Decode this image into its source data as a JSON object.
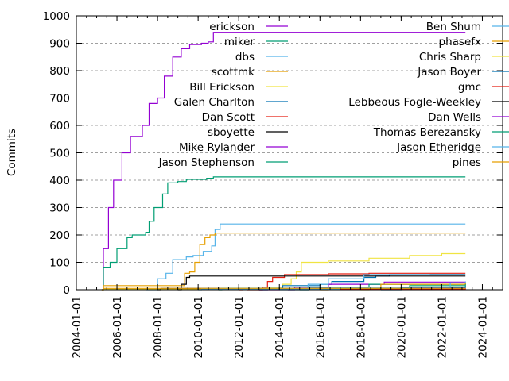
{
  "chart_data": {
    "type": "line",
    "title": "",
    "xlabel": "",
    "ylabel": "Commits",
    "xlim": [
      "2004-01-01",
      "2025-01-01"
    ],
    "ylim": [
      0,
      1000
    ],
    "x_ticks": [
      "2004-01-01",
      "2006-01-01",
      "2008-01-01",
      "2010-01-01",
      "2012-01-01",
      "2014-01-01",
      "2016-01-01",
      "2018-01-01",
      "2020-01-01",
      "2022-01-01",
      "2024-01-01"
    ],
    "y_ticks": [
      "0",
      "100",
      "200",
      "300",
      "400",
      "500",
      "600",
      "700",
      "800",
      "900",
      "1000"
    ],
    "grid": "horizontal dashed",
    "legend_placement": "top-right, two columns",
    "series": [
      {
        "name": "erickson",
        "color": "#9400d3",
        "points": [
          [
            "2005-04",
            0
          ],
          [
            "2005-05",
            150
          ],
          [
            "2005-08",
            300
          ],
          [
            "2005-11",
            400
          ],
          [
            "2006-04",
            500
          ],
          [
            "2006-09",
            560
          ],
          [
            "2007-04",
            600
          ],
          [
            "2007-08",
            680
          ],
          [
            "2008-01",
            700
          ],
          [
            "2008-05",
            780
          ],
          [
            "2008-10",
            850
          ],
          [
            "2009-03",
            880
          ],
          [
            "2009-08",
            895
          ],
          [
            "2010-03",
            900
          ],
          [
            "2010-07",
            905
          ],
          [
            "2010-10",
            940
          ],
          [
            "2023-03",
            940
          ]
        ]
      },
      {
        "name": "miker",
        "color": "#009e73",
        "points": [
          [
            "2005-04",
            0
          ],
          [
            "2005-05",
            80
          ],
          [
            "2005-09",
            100
          ],
          [
            "2006-01",
            150
          ],
          [
            "2006-07",
            190
          ],
          [
            "2006-10",
            200
          ],
          [
            "2007-06",
            210
          ],
          [
            "2007-08",
            250
          ],
          [
            "2007-11",
            300
          ],
          [
            "2008-04",
            350
          ],
          [
            "2008-07",
            390
          ],
          [
            "2009-01",
            395
          ],
          [
            "2009-06",
            403
          ],
          [
            "2010-06",
            407
          ],
          [
            "2010-10",
            412
          ],
          [
            "2023-03",
            412
          ]
        ]
      },
      {
        "name": "dbs",
        "color": "#56b4e9",
        "points": [
          [
            "2007-06",
            0
          ],
          [
            "2008-01",
            40
          ],
          [
            "2008-06",
            60
          ],
          [
            "2008-10",
            110
          ],
          [
            "2009-06",
            120
          ],
          [
            "2009-10",
            125
          ],
          [
            "2010-04",
            140
          ],
          [
            "2010-09",
            160
          ],
          [
            "2010-11",
            220
          ],
          [
            "2011-02",
            240
          ],
          [
            "2023-03",
            240
          ]
        ]
      },
      {
        "name": "scottmk",
        "color": "#e69f00",
        "points": [
          [
            "2005-04",
            0
          ],
          [
            "2005-05",
            15
          ],
          [
            "2009-04",
            15
          ],
          [
            "2009-05",
            60
          ],
          [
            "2009-08",
            65
          ],
          [
            "2009-11",
            100
          ],
          [
            "2010-02",
            165
          ],
          [
            "2010-05",
            190
          ],
          [
            "2010-08",
            200
          ],
          [
            "2010-11",
            207
          ],
          [
            "2023-03",
            207
          ]
        ]
      },
      {
        "name": "Bill Erickson",
        "color": "#f0e442",
        "points": [
          [
            "2005-04",
            0
          ],
          [
            "2005-05",
            2
          ],
          [
            "2013-06",
            10
          ],
          [
            "2014-03",
            20
          ],
          [
            "2014-08",
            40
          ],
          [
            "2014-11",
            65
          ],
          [
            "2015-02",
            100
          ],
          [
            "2016-06",
            105
          ],
          [
            "2018-06",
            115
          ],
          [
            "2020-06",
            125
          ],
          [
            "2022-01",
            132
          ],
          [
            "2023-03",
            132
          ]
        ]
      },
      {
        "name": "Galen Charlton",
        "color": "#0072b2",
        "points": [
          [
            "2013-01",
            0
          ],
          [
            "2013-06",
            5
          ],
          [
            "2014-03",
            15
          ],
          [
            "2016-01",
            20
          ],
          [
            "2016-08",
            30
          ],
          [
            "2018-03",
            45
          ],
          [
            "2018-10",
            50
          ],
          [
            "2019-06",
            55
          ],
          [
            "2023-03",
            55
          ]
        ]
      },
      {
        "name": "Dan Scott",
        "color": "#e51e10",
        "points": [
          [
            "2012-06",
            0
          ],
          [
            "2013-03",
            10
          ],
          [
            "2013-06",
            30
          ],
          [
            "2013-09",
            45
          ],
          [
            "2014-04",
            55
          ],
          [
            "2016-06",
            58
          ],
          [
            "2018-06",
            60
          ],
          [
            "2023-03",
            60
          ]
        ]
      },
      {
        "name": "sboyette",
        "color": "#000000",
        "points": [
          [
            "2008-01",
            0
          ],
          [
            "2008-03",
            5
          ],
          [
            "2009-03",
            20
          ],
          [
            "2009-06",
            45
          ],
          [
            "2009-08",
            50
          ],
          [
            "2023-03",
            50
          ]
        ]
      },
      {
        "name": "Mike Rylander",
        "color": "#9400d3",
        "points": [
          [
            "2014-06",
            0
          ],
          [
            "2014-10",
            10
          ],
          [
            "2016-06",
            20
          ],
          [
            "2019-03",
            28
          ],
          [
            "2023-03",
            30
          ]
        ]
      },
      {
        "name": "Jason Stephenson",
        "color": "#009e73",
        "points": [
          [
            "2015-01",
            0
          ],
          [
            "2015-06",
            10
          ],
          [
            "2018-06",
            20
          ],
          [
            "2023-03",
            25
          ]
        ]
      },
      {
        "name": "Ben Shum",
        "color": "#56b4e9",
        "points": [
          [
            "2014-01",
            0
          ],
          [
            "2015-06",
            20
          ],
          [
            "2016-06",
            40
          ],
          [
            "2018-03",
            55
          ],
          [
            "2021-06",
            55
          ]
        ]
      },
      {
        "name": "phasefx",
        "color": "#e69f00",
        "points": [
          [
            "2016-01",
            0
          ],
          [
            "2016-06",
            5
          ],
          [
            "2019-01",
            20
          ],
          [
            "2023-03",
            25
          ]
        ]
      },
      {
        "name": "Chris Sharp",
        "color": "#f0e442",
        "points": [
          [
            "2018-01",
            0
          ],
          [
            "2018-06",
            5
          ],
          [
            "2023-03",
            10
          ]
        ]
      },
      {
        "name": "Jason Boyer",
        "color": "#0072b2",
        "points": [
          [
            "2019-01",
            0
          ],
          [
            "2020-01",
            8
          ],
          [
            "2023-03",
            15
          ]
        ]
      },
      {
        "name": "gmc",
        "color": "#e51e10",
        "points": [
          [
            "2012-01",
            0
          ],
          [
            "2012-03",
            3
          ],
          [
            "2023-03",
            5
          ]
        ]
      },
      {
        "name": "Lebbeous Fogle-Weekley",
        "color": "#000000",
        "points": [
          [
            "2009-01",
            0
          ],
          [
            "2009-03",
            5
          ],
          [
            "2023-03",
            5
          ]
        ]
      },
      {
        "name": "Dan Wells",
        "color": "#9400d3",
        "points": [
          [
            "2013-01",
            0
          ],
          [
            "2014-01",
            5
          ],
          [
            "2023-03",
            5
          ]
        ]
      },
      {
        "name": "Thomas Berezansky",
        "color": "#009e73",
        "points": [
          [
            "2011-01",
            0
          ],
          [
            "2011-03",
            5
          ],
          [
            "2020-06",
            15
          ],
          [
            "2023-03",
            20
          ]
        ]
      },
      {
        "name": "Jason Etheridge",
        "color": "#56b4e9",
        "points": [
          [
            "2010-01",
            0
          ],
          [
            "2010-03",
            3
          ],
          [
            "2017-01",
            10
          ],
          [
            "2022-06",
            25
          ],
          [
            "2023-03",
            30
          ]
        ]
      },
      {
        "name": "pines",
        "color": "#e69f00",
        "points": [
          [
            "2005-04",
            0
          ],
          [
            "2005-05",
            5
          ],
          [
            "2023-03",
            5
          ]
        ]
      }
    ]
  }
}
